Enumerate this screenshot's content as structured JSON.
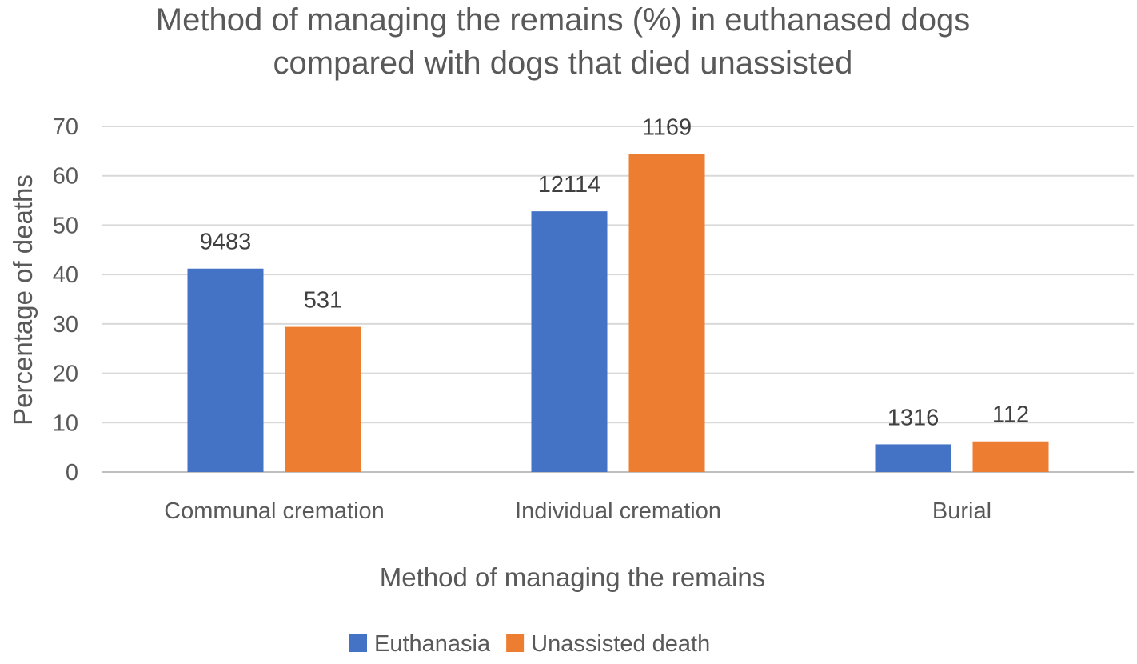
{
  "chart_data": {
    "type": "bar",
    "title": "Method of managing the remains (%) in euthanased dogs compared with dogs that died unassisted",
    "title_lines": [
      "Method of managing the remains (%) in euthanased dogs",
      "compared with dogs that died unassisted"
    ],
    "xlabel": "Method of managing the remains",
    "ylabel": "Percentage of deaths",
    "ylim": [
      0,
      70
    ],
    "yticks": [
      0,
      10,
      20,
      30,
      40,
      50,
      60,
      70
    ],
    "grid": true,
    "legend_position": "bottom",
    "categories": [
      "Communal cremation",
      "Individual cremation",
      "Burial"
    ],
    "series": [
      {
        "name": "Euthanasia",
        "color": "#4472c4",
        "values": [
          41.2,
          52.8,
          5.6
        ],
        "data_labels": [
          "9483",
          "12114",
          "1316"
        ]
      },
      {
        "name": "Unassisted death",
        "color": "#ed7d31",
        "values": [
          29.4,
          64.4,
          6.2
        ],
        "data_labels": [
          "531",
          "1169",
          "112"
        ]
      }
    ]
  }
}
